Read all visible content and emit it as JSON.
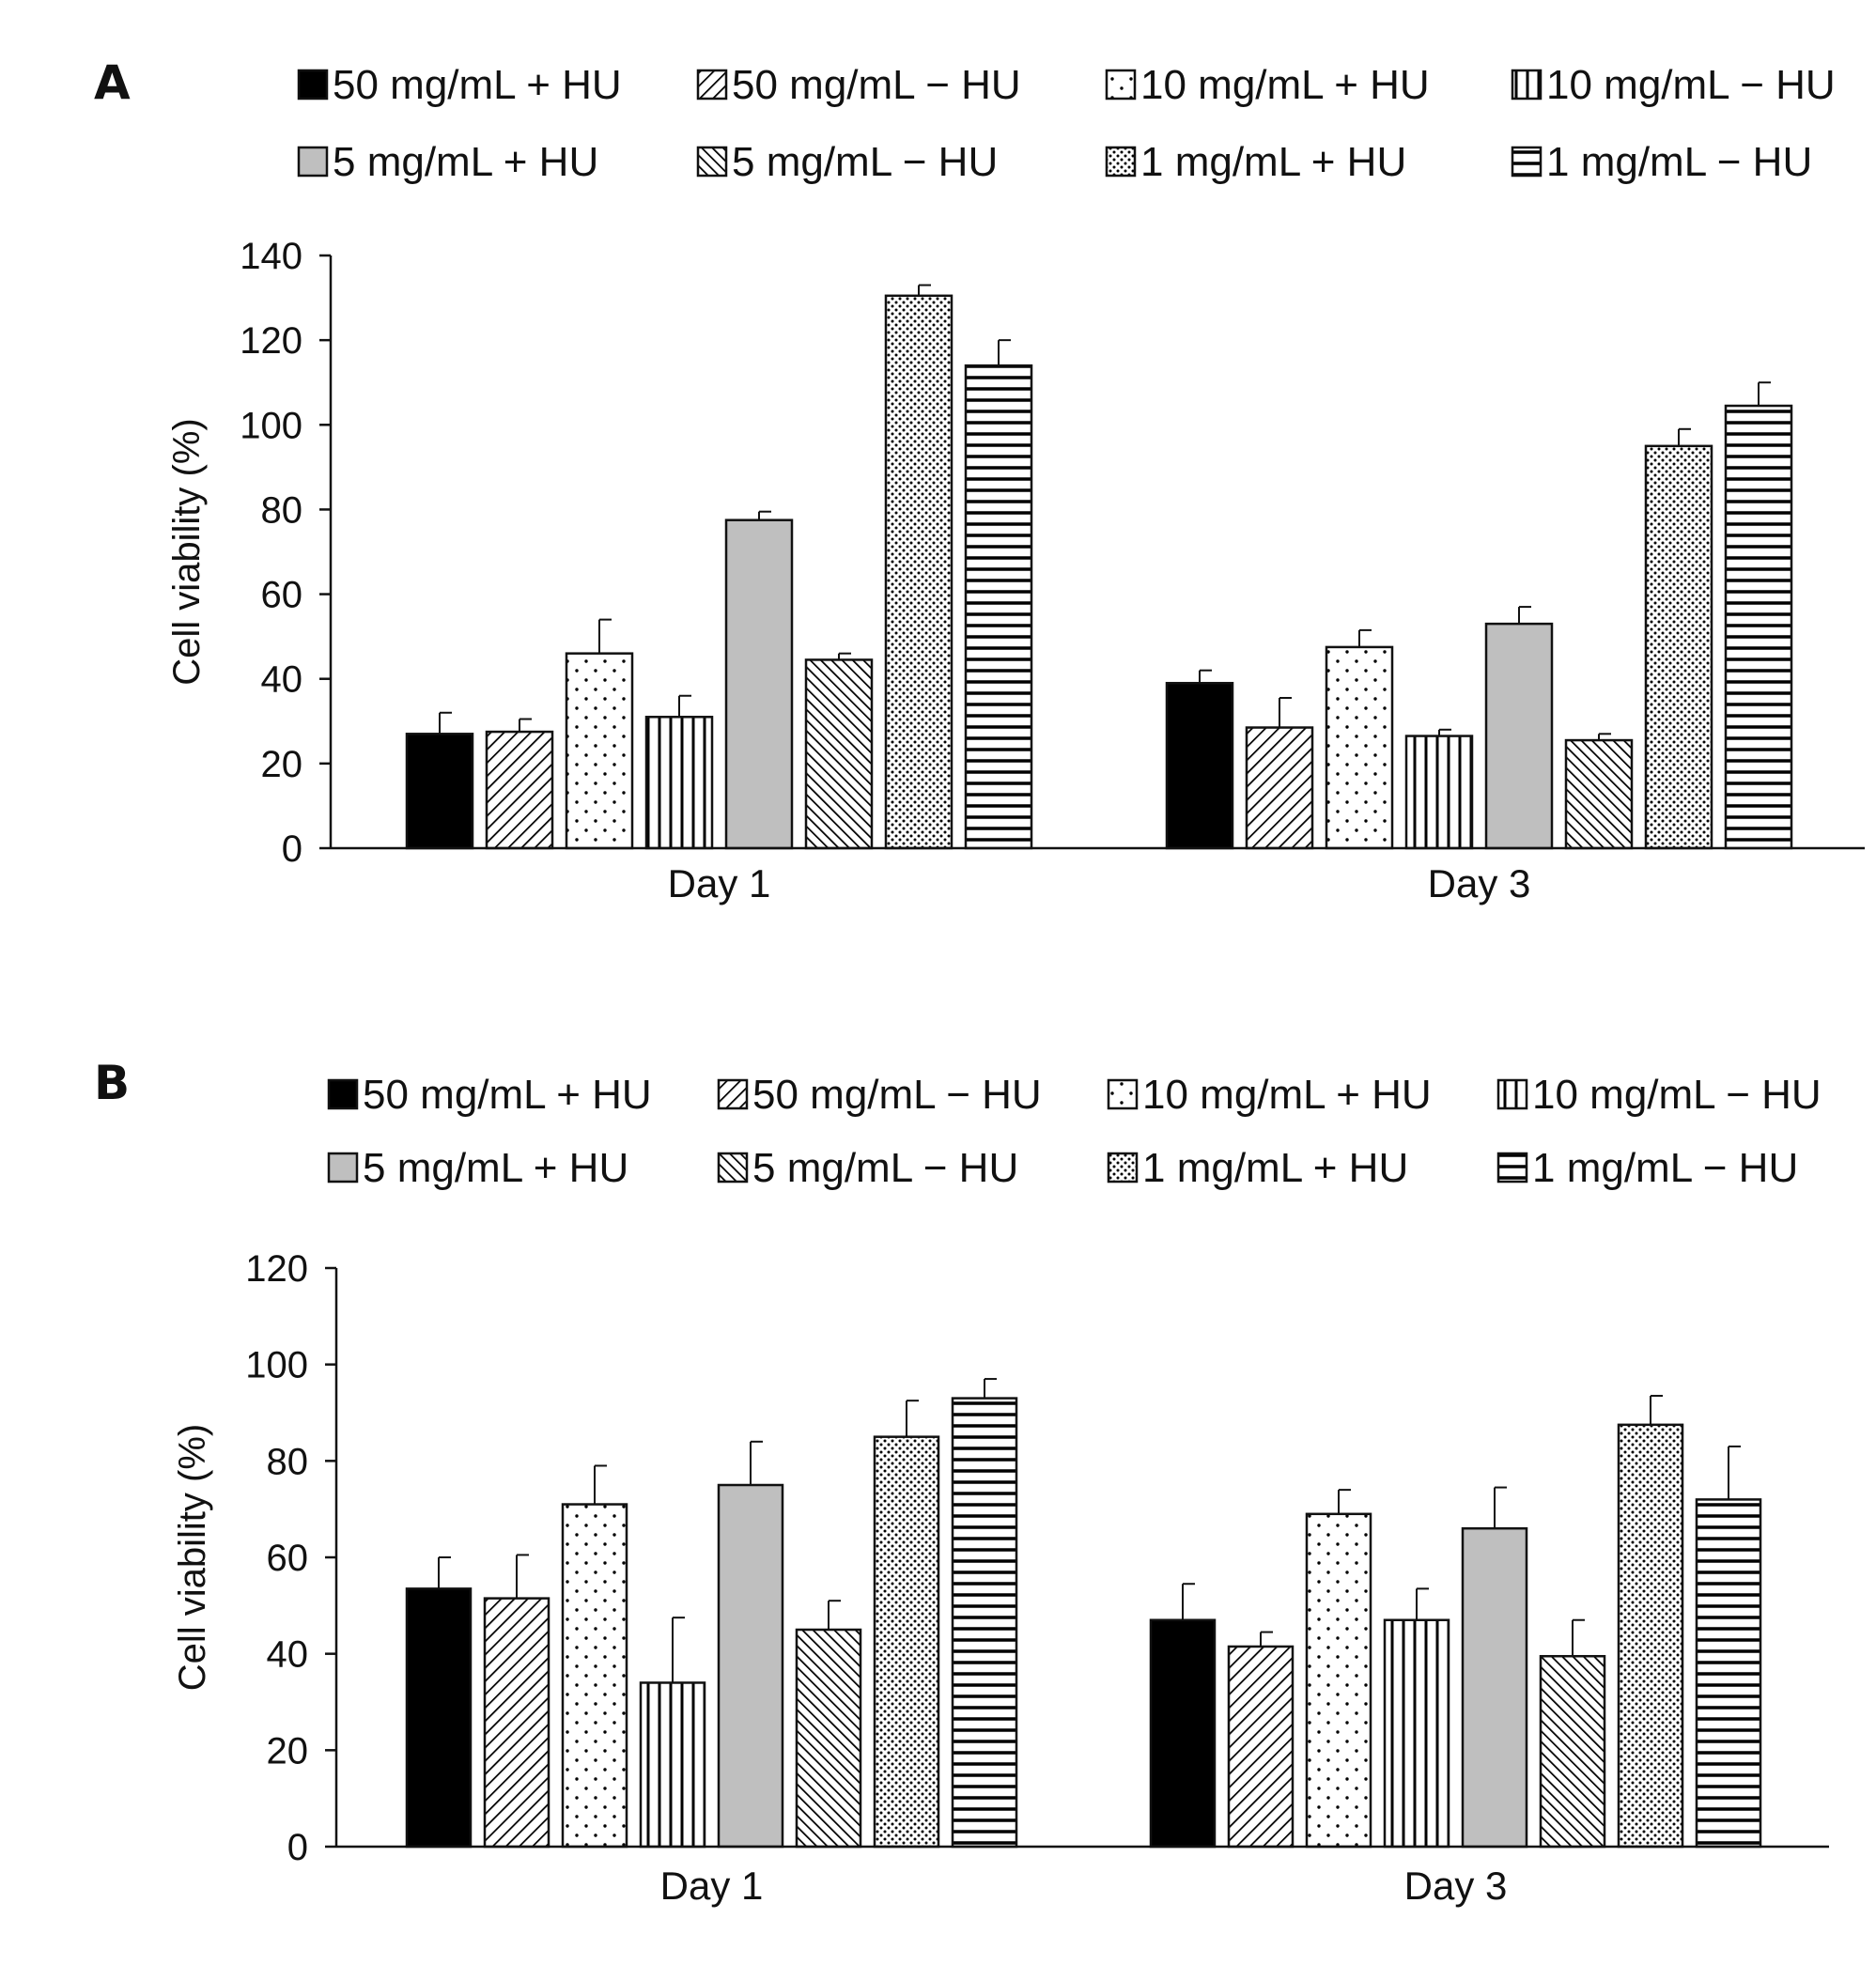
{
  "figure": {
    "series_styles": [
      {
        "name": "50 mg/mL + HU",
        "pattern": "solid-black"
      },
      {
        "name": "50 mg/mL − HU",
        "pattern": "diag-right"
      },
      {
        "name": "10 mg/mL + HU",
        "pattern": "sparse-dots"
      },
      {
        "name": "10 mg/mL − HU",
        "pattern": "vertical-lines"
      },
      {
        "name": "5 mg/mL + HU",
        "pattern": "solid-gray"
      },
      {
        "name": "5 mg/mL − HU",
        "pattern": "diag-left"
      },
      {
        "name": "1 mg/mL + HU",
        "pattern": "dense-dots"
      },
      {
        "name": "1 mg/mL − HU",
        "pattern": "horizontal-lines"
      }
    ],
    "colors": {
      "black": "#000000",
      "gray": "#bfbfbf",
      "line": "#111111",
      "background": "#ffffff"
    }
  },
  "chart_data": [
    {
      "panel": "A",
      "type": "bar",
      "title": "",
      "xlabel": "",
      "ylabel": "Cell viability (%)",
      "ylim": [
        0,
        140
      ],
      "yticks": [
        "0",
        "20",
        "40",
        "60",
        "80",
        "100",
        "120",
        "140"
      ],
      "categories": [
        "Day 1",
        "Day 3"
      ],
      "legend": "top",
      "series": [
        {
          "name": "50 mg/mL + HU",
          "values": [
            27,
            39
          ],
          "errors": [
            5,
            3
          ]
        },
        {
          "name": "50 mg/mL − HU",
          "values": [
            27.5,
            28.5
          ],
          "errors": [
            3,
            7
          ]
        },
        {
          "name": "10 mg/mL + HU",
          "values": [
            46,
            47.5
          ],
          "errors": [
            8,
            4
          ]
        },
        {
          "name": "10 mg/mL − HU",
          "values": [
            31,
            26.5
          ],
          "errors": [
            5,
            1.5
          ]
        },
        {
          "name": "5 mg/mL + HU",
          "values": [
            77.5,
            53
          ],
          "errors": [
            2,
            4
          ]
        },
        {
          "name": "5 mg/mL − HU",
          "values": [
            44.5,
            25.5
          ],
          "errors": [
            1.5,
            1.5
          ]
        },
        {
          "name": "1 mg/mL + HU",
          "values": [
            130.5,
            95
          ],
          "errors": [
            2.5,
            4
          ]
        },
        {
          "name": "1 mg/mL − HU",
          "values": [
            114,
            104.5
          ],
          "errors": [
            6,
            5.5
          ]
        }
      ]
    },
    {
      "panel": "B",
      "type": "bar",
      "title": "",
      "xlabel": "",
      "ylabel": "Cell viability (%)",
      "ylim": [
        0,
        120
      ],
      "yticks": [
        "0",
        "20",
        "40",
        "60",
        "80",
        "100",
        "120"
      ],
      "categories": [
        "Day 1",
        "Day 3"
      ],
      "legend": "top",
      "series": [
        {
          "name": "50 mg/mL + HU",
          "values": [
            53.5,
            47
          ],
          "errors": [
            6.5,
            7.5
          ]
        },
        {
          "name": "50 mg/mL − HU",
          "values": [
            51.5,
            41.5
          ],
          "errors": [
            9,
            3
          ]
        },
        {
          "name": "10 mg/mL + HU",
          "values": [
            71,
            69
          ],
          "errors": [
            8,
            5
          ]
        },
        {
          "name": "10 mg/mL − HU",
          "values": [
            34,
            47
          ],
          "errors": [
            13.5,
            6.5
          ]
        },
        {
          "name": "5 mg/mL + HU",
          "values": [
            75,
            66
          ],
          "errors": [
            9,
            8.5
          ]
        },
        {
          "name": "5 mg/mL − HU",
          "values": [
            45,
            39.5
          ],
          "errors": [
            6,
            7.5
          ]
        },
        {
          "name": "1 mg/mL + HU",
          "values": [
            85,
            87.5
          ],
          "errors": [
            7.5,
            6
          ]
        },
        {
          "name": "1 mg/mL − HU",
          "values": [
            93,
            72
          ],
          "errors": [
            4,
            11
          ]
        }
      ]
    }
  ]
}
